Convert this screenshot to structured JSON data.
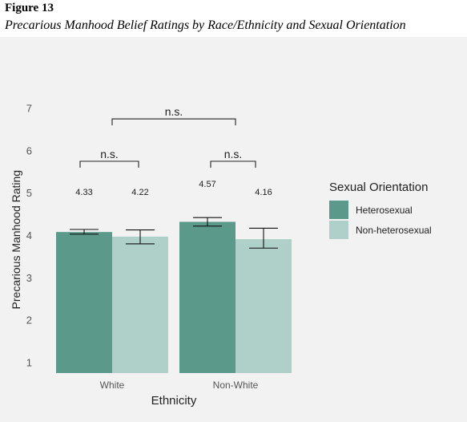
{
  "figure": {
    "label": "Figure 13",
    "title": "Precarious Manhood Belief Ratings by Race/Ethnicity and Sexual Orientation"
  },
  "chart_data": {
    "type": "bar",
    "xlabel": "Ethnicity",
    "ylabel": "Precarious Manhood Rating",
    "ylim": [
      1,
      7
    ],
    "yticks": [
      "1",
      "2",
      "3",
      "4",
      "5",
      "6",
      "7"
    ],
    "categories": [
      "White",
      "Non-White"
    ],
    "legend": {
      "title": "Sexual Orientation",
      "position": "right"
    },
    "series": [
      {
        "name": "Heterosexual",
        "color": "#5b9a8b",
        "values": [
          4.33,
          4.57
        ],
        "labels": [
          "4.33",
          "4.57"
        ],
        "err_low": [
          4.28,
          4.47
        ],
        "err_high": [
          4.39,
          4.67
        ]
      },
      {
        "name": "Non-heterosexual",
        "color": "#aed0c8",
        "values": [
          4.22,
          4.16
        ],
        "labels": [
          "4.22",
          "4.16"
        ],
        "err_low": [
          4.05,
          3.95
        ],
        "err_high": [
          4.38,
          4.42
        ]
      }
    ],
    "annotations": [
      {
        "text": "n.s.",
        "level": 6.0,
        "category": "White"
      },
      {
        "text": "n.s.",
        "level": 6.0,
        "category": "Non-White"
      },
      {
        "text": "n.s.",
        "level": 7.0,
        "category": "between"
      }
    ],
    "grid": false
  }
}
